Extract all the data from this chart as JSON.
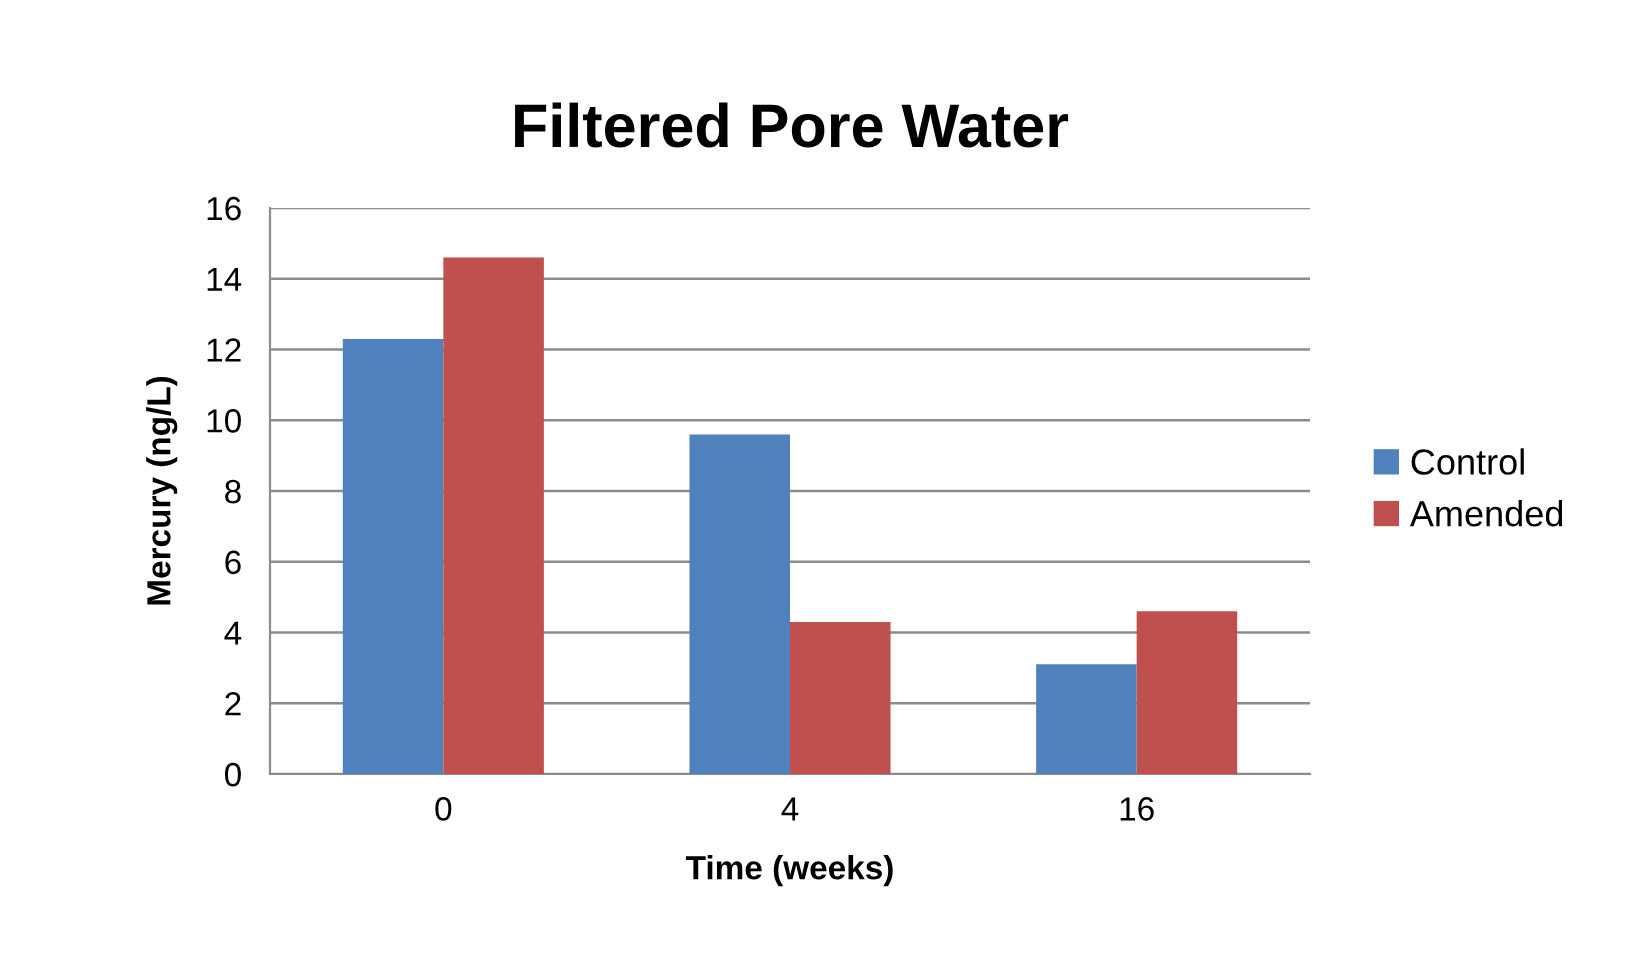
{
  "chart_data": {
    "type": "bar",
    "title": "Filtered Pore Water",
    "xlabel": "Time (weeks)",
    "ylabel": "Mercury (ng/L)",
    "categories": [
      "0",
      "4",
      "16"
    ],
    "series": [
      {
        "name": "Control",
        "color": "#4f81bd",
        "values": [
          12.3,
          9.6,
          3.1
        ]
      },
      {
        "name": "Amended",
        "color": "#c0504d",
        "values": [
          14.6,
          4.3,
          4.6
        ]
      }
    ],
    "ylim": [
      0,
      16
    ],
    "yticks": [
      0,
      2,
      4,
      6,
      8,
      10,
      12,
      14,
      16
    ],
    "grid": "y",
    "legend": "right"
  }
}
